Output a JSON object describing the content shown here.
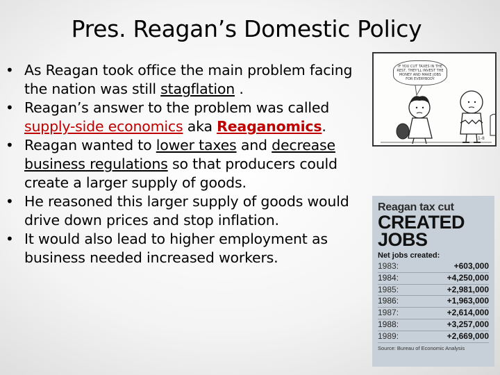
{
  "slide": {
    "title": "Pres. Reagan’s Domestic Policy",
    "bullets": [
      {
        "parts": [
          "As Reagan took office the main problem facing the nation was still ",
          "stagflation",
          " ."
        ]
      },
      {
        "parts": [
          "Reagan’s answer to the problem was called ",
          "supply-side economics",
          " aka ",
          "Reaganomics",
          "."
        ]
      },
      {
        "parts": [
          "Reagan wanted to ",
          "lower taxes",
          " and ",
          "decrease business regulations",
          " so that producers could create a larger supply of goods."
        ]
      },
      {
        "text": "He reasoned this larger supply of goods would drive down prices and stop inflation."
      },
      {
        "text": "It would also lead to higher employment as business needed increased workers."
      }
    ]
  },
  "comic": {
    "bubble_text": "IF YOU CUT TAXES IN THE REST, THEY'LL INVEST THE MONEY AND MAKE JOBS FOR EVERYBODY",
    "date_mark": "1-8"
  },
  "taxcut": {
    "heading": "Reagan tax cut",
    "big_line1": "CREATED",
    "big_line2": "JOBS",
    "subheading": "Net jobs created:",
    "rows": [
      {
        "year": "1983:",
        "value": "+603,000"
      },
      {
        "year": "1984:",
        "value": "+4,250,000"
      },
      {
        "year": "1985:",
        "value": "+2,981,000"
      },
      {
        "year": "1986:",
        "value": "+1,963,000"
      },
      {
        "year": "1987:",
        "value": "+2,614,000"
      },
      {
        "year": "1988:",
        "value": "+3,257,000"
      },
      {
        "year": "1989:",
        "value": "+2,669,000"
      }
    ],
    "source": "Source: Bureau of Economic Analysis"
  }
}
